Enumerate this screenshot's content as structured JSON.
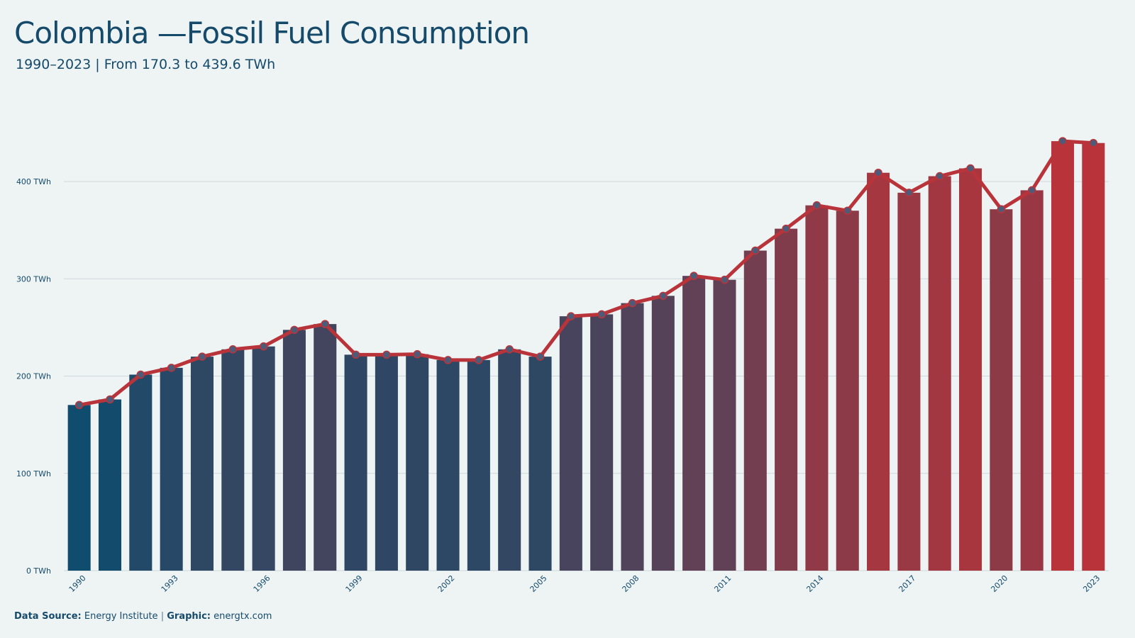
{
  "title": "Colombia —Fossil Fuel Consumption",
  "subtitle": "1990–2023 | From 170.3 to 439.6 TWh",
  "footer": {
    "source_label": "Data Source:",
    "source_value": "Energy Institute",
    "separator": "|",
    "graphic_label": "Graphic:",
    "graphic_value": "energtx.com"
  },
  "colors": {
    "background": "#eef4f4",
    "title": "#154a6b",
    "bar_low": "#0f4c6e",
    "bar_high": "#b9343a",
    "line": "#b9343a",
    "marker_fill": "#4d5b78",
    "grid": "#cfd8dc"
  },
  "chart_data": {
    "type": "bar",
    "x": [
      1990,
      1991,
      1992,
      1993,
      1994,
      1995,
      1996,
      1997,
      1998,
      1999,
      2000,
      2001,
      2002,
      2003,
      2004,
      2005,
      2006,
      2007,
      2008,
      2009,
      2010,
      2011,
      2012,
      2013,
      2014,
      2015,
      2016,
      2017,
      2018,
      2019,
      2020,
      2021,
      2022,
      2023
    ],
    "values": [
      170.3,
      176,
      201.5,
      208.5,
      220,
      227.5,
      230.5,
      247.5,
      253.5,
      222,
      222,
      222.5,
      216.5,
      216.5,
      227.5,
      220,
      261.5,
      263.5,
      275,
      282.5,
      303,
      299,
      329,
      351.5,
      375.5,
      370,
      409,
      388.5,
      405.5,
      413.5,
      371.5,
      391,
      441.5,
      439.6
    ],
    "overlay_line": true,
    "x_tick_labels": [
      "1990",
      "1993",
      "1996",
      "1999",
      "2002",
      "2005",
      "2008",
      "2011",
      "2014",
      "2017",
      "2020",
      "2023"
    ],
    "y_tick_labels": [
      "0 TWh",
      "100 TWh",
      "200 TWh",
      "300 TWh",
      "400 TWh"
    ],
    "y_ticks": [
      0,
      100,
      200,
      300,
      400
    ],
    "ylim": [
      0,
      470
    ],
    "unit": "TWh",
    "grid": "horizontal"
  }
}
